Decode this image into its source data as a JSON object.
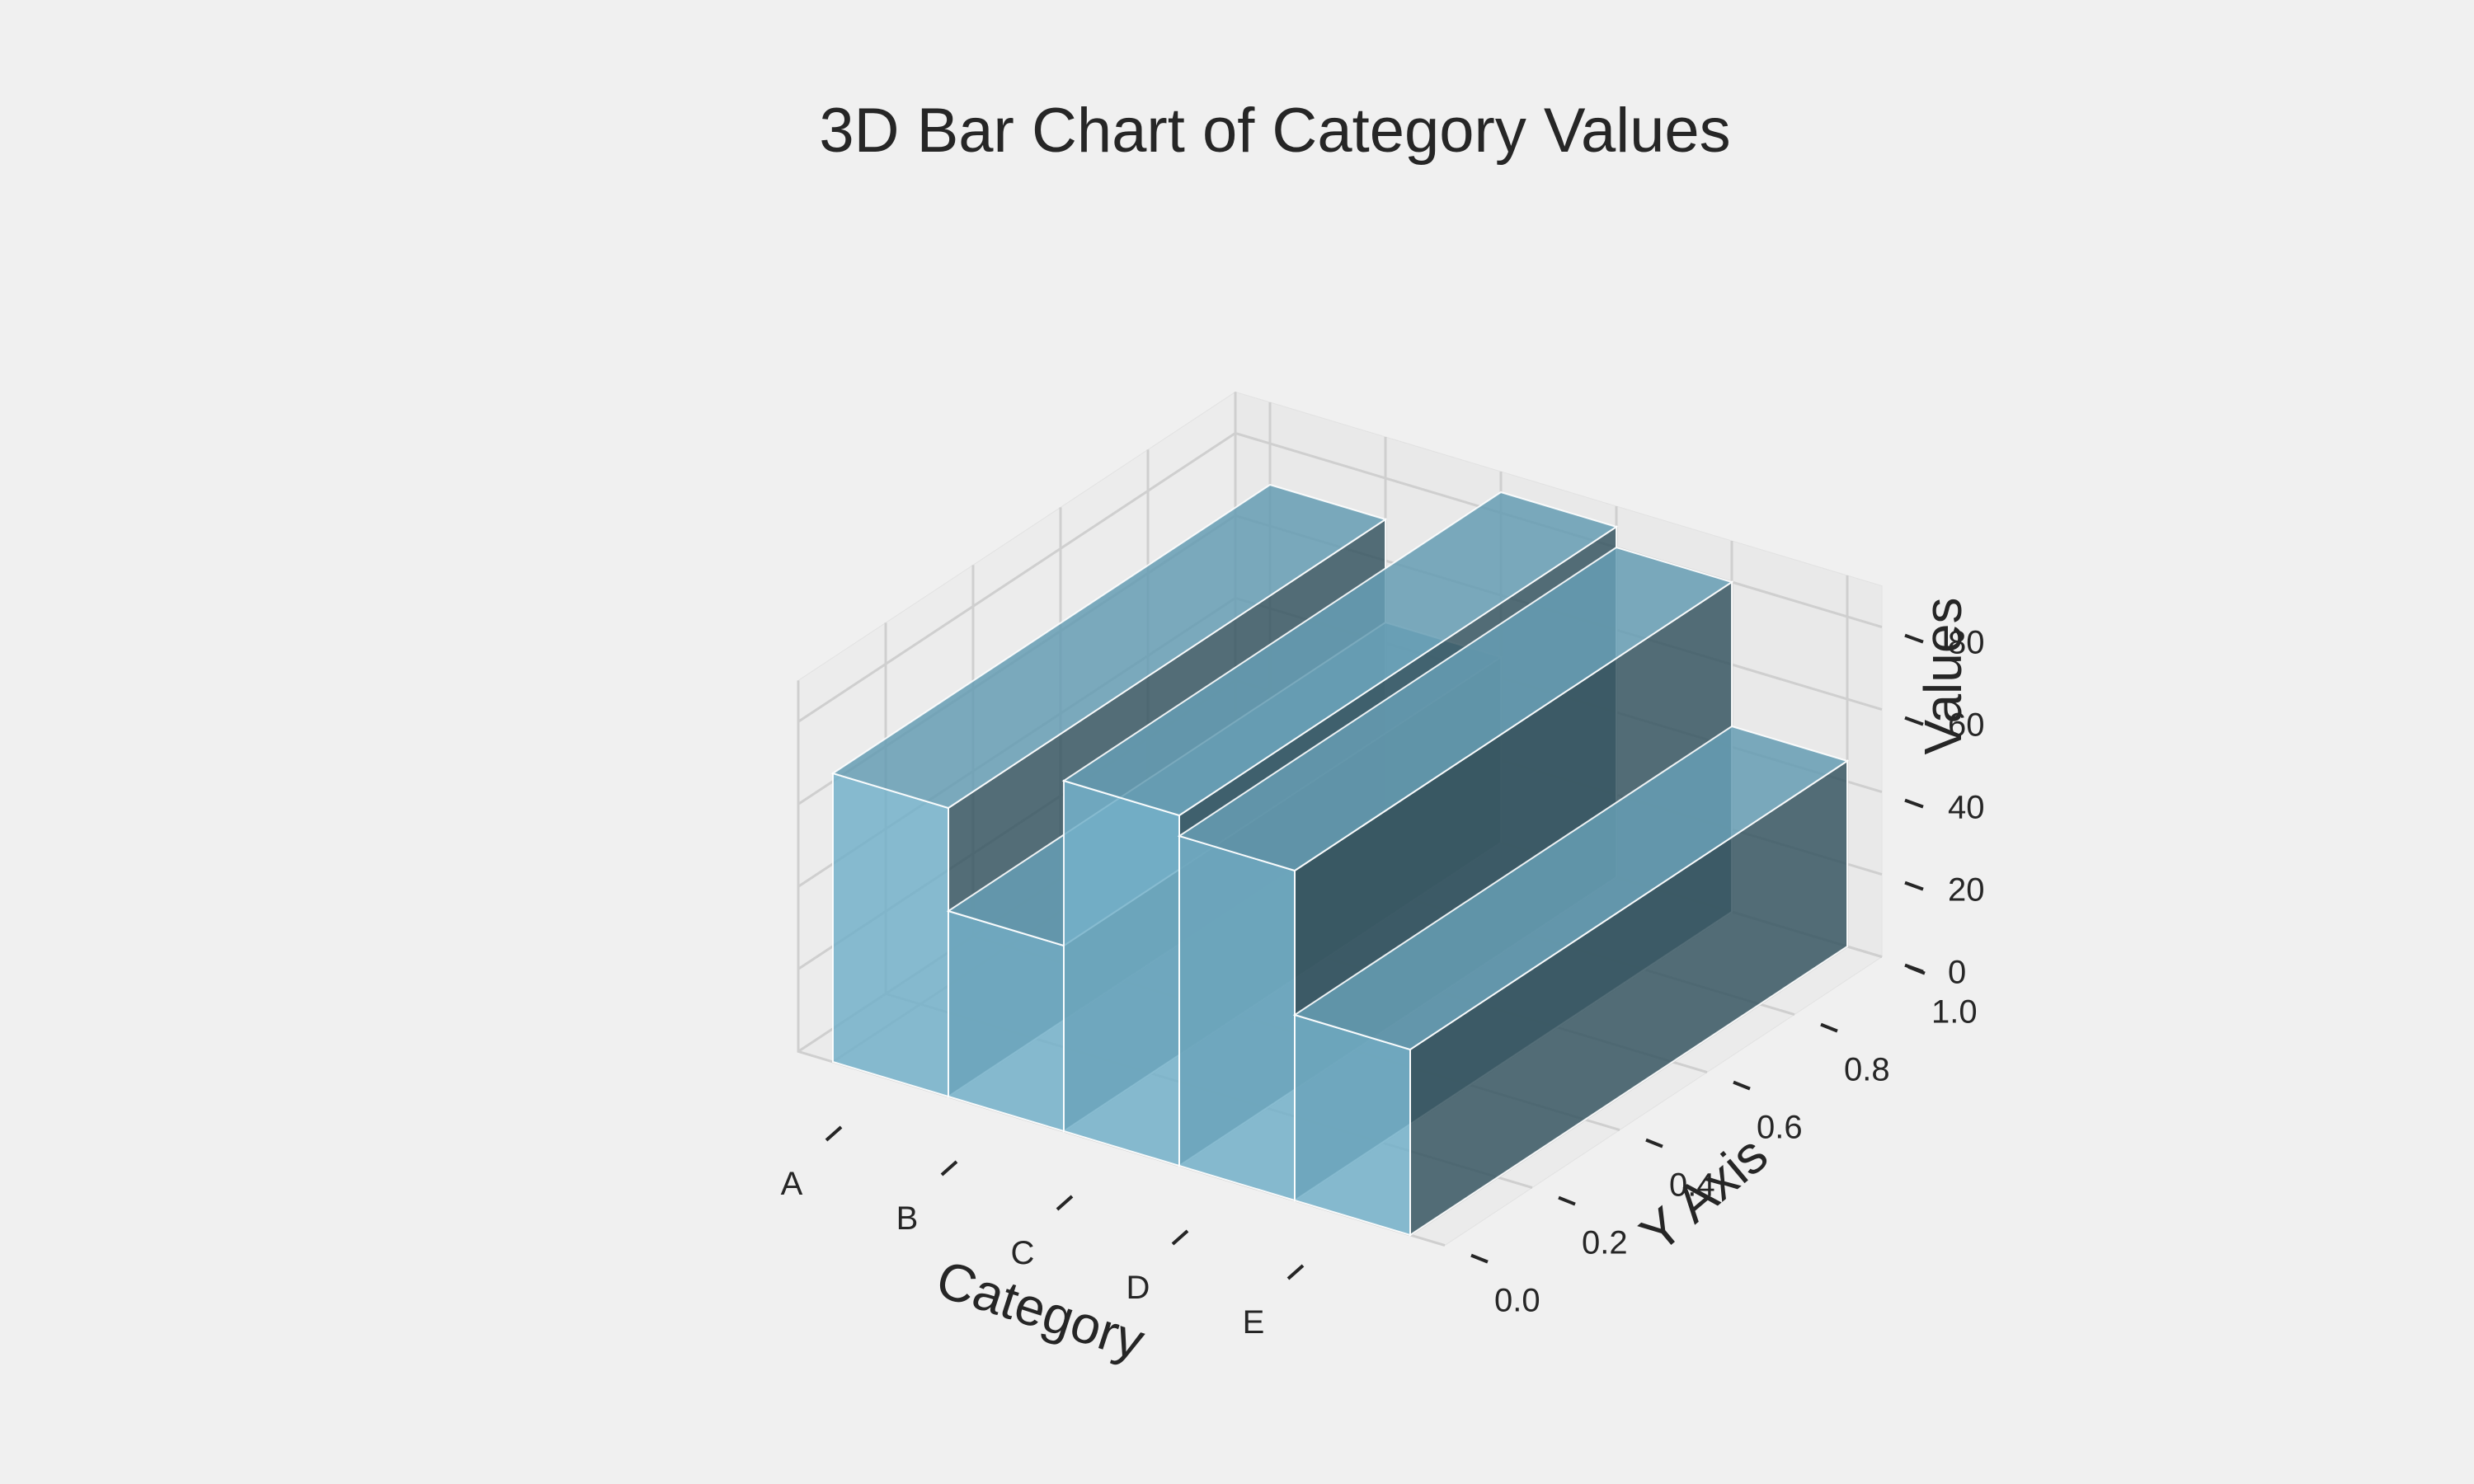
{
  "chart_data": {
    "type": "bar",
    "title": "3D Bar Chart of Category Values",
    "xlabel": "Category",
    "ylabel": "Y Axis",
    "zlabel": "Values",
    "categories": [
      "A",
      "B",
      "C",
      "D",
      "E"
    ],
    "values": [
      70,
      45,
      85,
      80,
      45
    ],
    "y_ticks": [
      "0.0",
      "0.2",
      "0.4",
      "0.6",
      "0.8",
      "1.0"
    ],
    "z_ticks": [
      "0",
      "20",
      "40",
      "60",
      "80"
    ],
    "zlim": [
      0,
      90
    ],
    "ylim": [
      0,
      1
    ],
    "grid": true,
    "bar_color": "#87ceeb",
    "pane_color": "#ebebeb",
    "background_color": "#f0f0f0"
  }
}
